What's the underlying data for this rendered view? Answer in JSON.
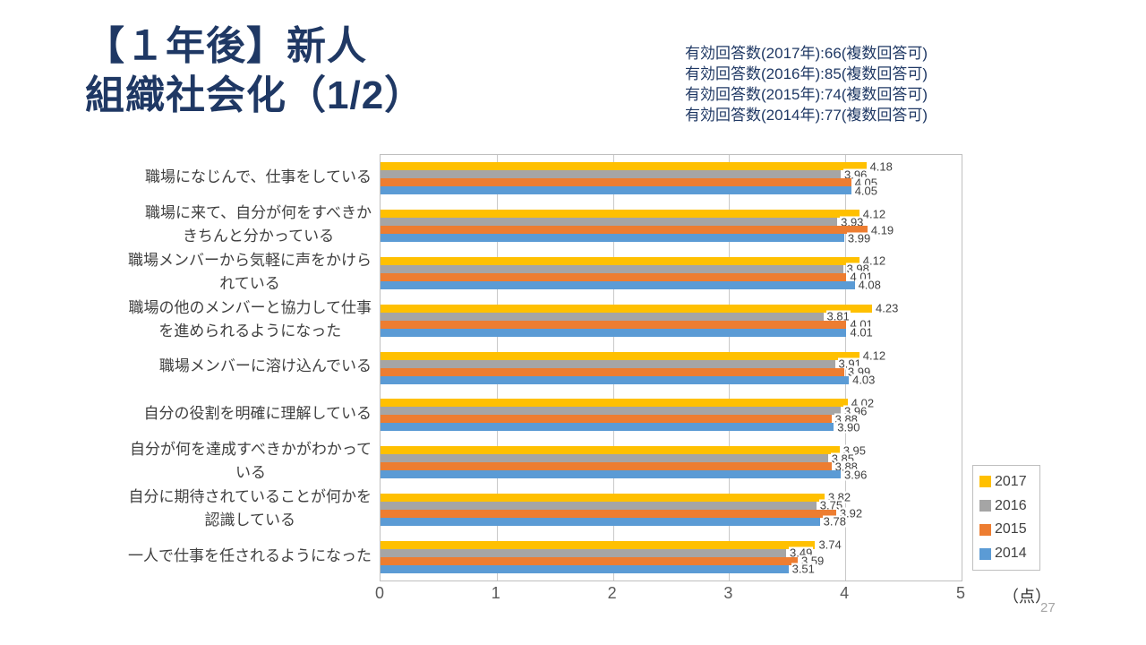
{
  "theme": {
    "title_color": "#1F3864",
    "annotation_color": "#1F3864",
    "axis_text_color": "#595959",
    "label_text_color": "#404040"
  },
  "slide": {
    "title_line1": "【１年後】新人",
    "title_line2": "組織社会化（1/2）",
    "response_counts": [
      "有効回答数(2017年):66(複数回答可)",
      "有効回答数(2016年):85(複数回答可)",
      "有効回答数(2015年):74(複数回答可)",
      "有効回答数(2014年):77(複数回答可)"
    ],
    "page_number": "27"
  },
  "chart_data": {
    "type": "bar",
    "orientation": "horizontal",
    "title": "",
    "xlabel": "（点）",
    "ylabel": "",
    "xlim": [
      0,
      5
    ],
    "x_ticks": [
      0,
      1,
      2,
      3,
      4,
      5
    ],
    "grid": true,
    "value_labels": true,
    "legend_position": "right",
    "unit_label": "（点）",
    "categories": [
      "職場になじんで、仕事をしている",
      "職場に来て、自分が何をすべきかきちんと分かっている",
      "職場メンバーから気軽に声をかけられている",
      "職場の他のメンバーと協力して仕事を進められるようになった",
      "職場メンバーに溶け込んでいる",
      "自分の役割を明確に理解している",
      "自分が何を達成すべきかがわかっている",
      "自分に期待されていることが何かを認識している",
      "一人で仕事を任されるようになった"
    ],
    "category_lines": [
      [
        "職場になじんで、仕事をしている"
      ],
      [
        "職場に来て、自分が何をすべきか",
        "きちんと分かっている"
      ],
      [
        "職場メンバーから気軽に声をかけら",
        "れている"
      ],
      [
        "職場の他のメンバーと協力して仕事",
        "を進められるようになった"
      ],
      [
        "職場メンバーに溶け込んでいる"
      ],
      [
        "自分の役割を明確に理解している"
      ],
      [
        "自分が何を達成すべきかがわかって",
        "いる"
      ],
      [
        "自分に期待されていることが何かを",
        "認識している"
      ],
      [
        "一人で仕事を任されるようになった"
      ]
    ],
    "series": [
      {
        "name": "2017",
        "color": "#FFC000",
        "values": [
          4.18,
          4.12,
          4.12,
          4.23,
          4.12,
          4.02,
          3.95,
          3.82,
          3.74
        ]
      },
      {
        "name": "2016",
        "color": "#A5A5A5",
        "values": [
          3.96,
          3.93,
          3.98,
          3.81,
          3.91,
          3.96,
          3.85,
          3.75,
          3.49
        ]
      },
      {
        "name": "2015",
        "color": "#ED7D31",
        "values": [
          4.05,
          4.19,
          4.01,
          4.01,
          3.99,
          3.88,
          3.88,
          3.92,
          3.59
        ]
      },
      {
        "name": "2014",
        "color": "#5B9BD5",
        "values": [
          4.05,
          3.99,
          4.08,
          4.01,
          4.03,
          3.9,
          3.96,
          3.78,
          3.51
        ]
      }
    ]
  }
}
